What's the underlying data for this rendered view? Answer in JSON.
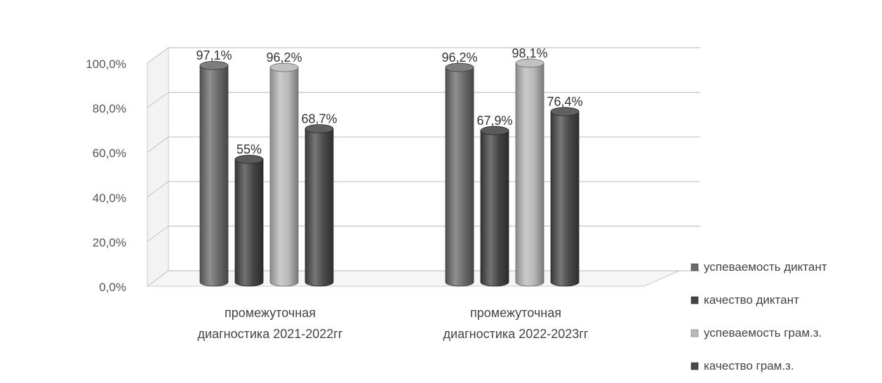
{
  "chart_data": {
    "type": "bar",
    "title": "",
    "xlabel": "",
    "ylabel": "",
    "ylim": [
      0,
      100
    ],
    "yticks": [
      "0,0%",
      "20,0%",
      "40,0%",
      "60,0%",
      "80,0%",
      "100,0%"
    ],
    "categories": [
      [
        "промежуточная",
        "диагностика 2021-2022гг"
      ],
      [
        "промежуточная",
        "диагностика 2022-2023гг"
      ]
    ],
    "series": [
      {
        "name": "успеваемость диктант",
        "values": [
          97.1,
          96.2
        ],
        "labels": [
          "97,1%",
          "96,2%"
        ],
        "color": "#6b6b6b"
      },
      {
        "name": "качество диктант",
        "values": [
          55,
          67.9
        ],
        "labels": [
          "55%",
          "67,9%"
        ],
        "color": "#444444"
      },
      {
        "name": "успеваемость грам.з.",
        "values": [
          96.2,
          98.1
        ],
        "labels": [
          "96,2%",
          "98,1%"
        ],
        "color": "#b9b9b9"
      },
      {
        "name": "качество грам.з.",
        "values": [
          68.7,
          76.4
        ],
        "labels": [
          "68,7%",
          "76,4%"
        ],
        "color": "#4a4a4a"
      }
    ],
    "legend_position": "right",
    "grid": true,
    "style": "3d-cylinder"
  }
}
